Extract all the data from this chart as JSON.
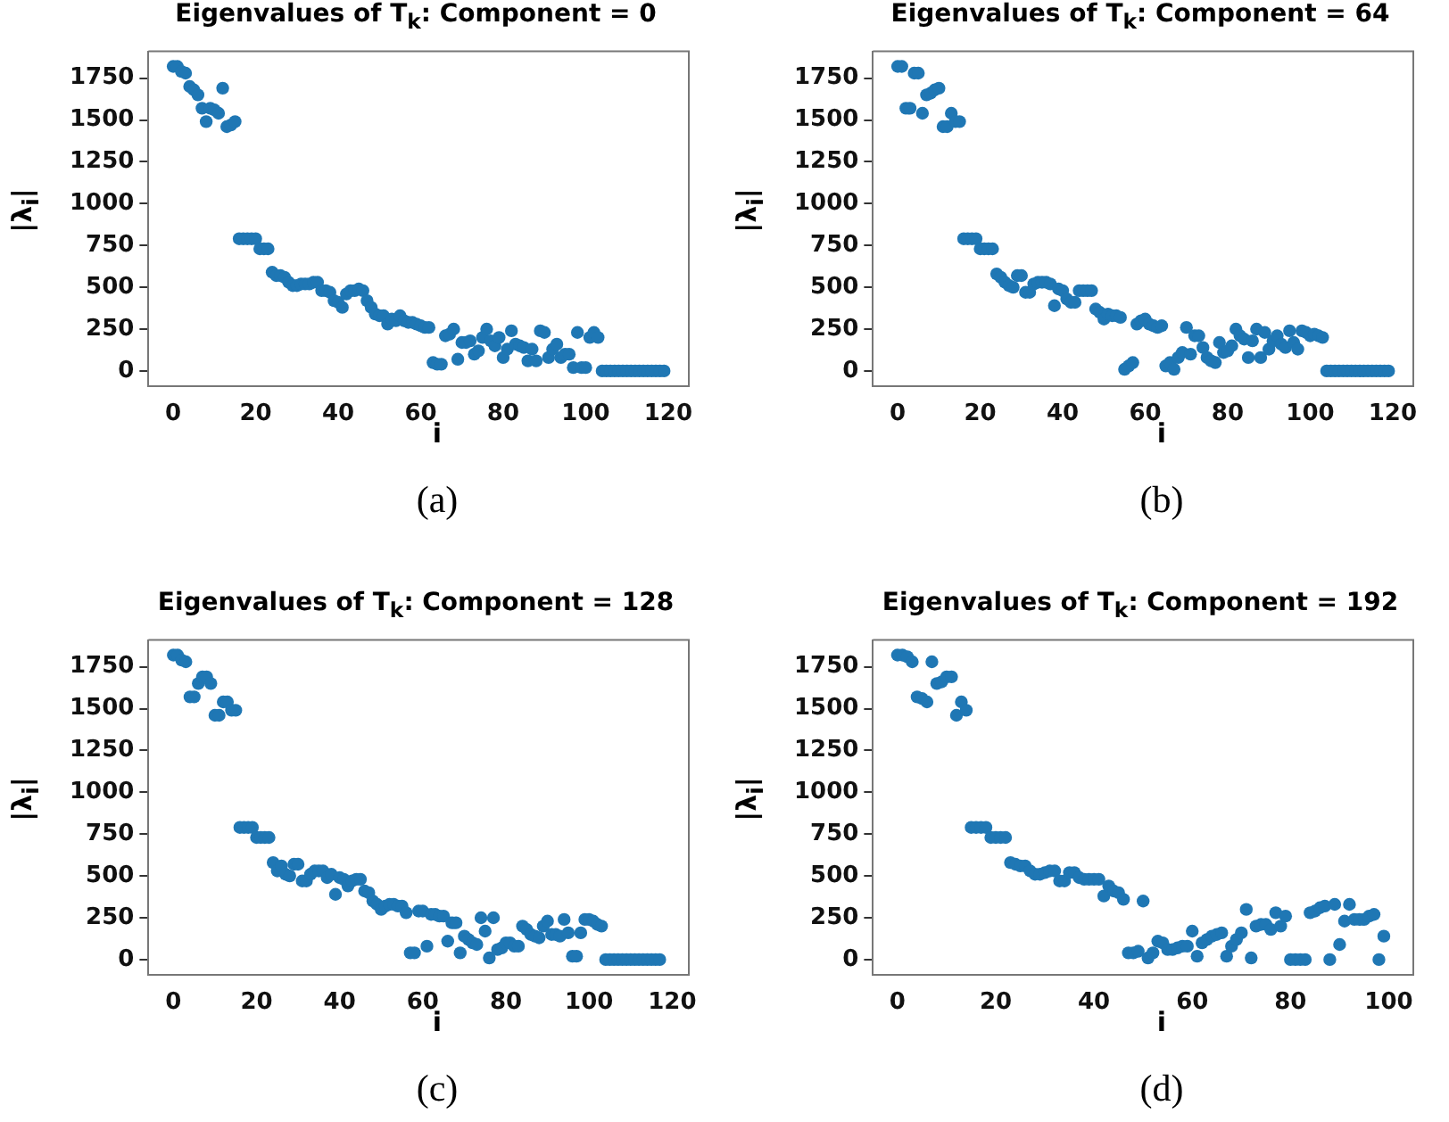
{
  "chart_data": [
    {
      "type": "scatter",
      "title": "Eigenvalues of T$_{k}$: Component = 0",
      "xlabel": "i",
      "ylabel": "|λ$_{i}$|",
      "annotations": [
        "(a)"
      ],
      "marker": "circle",
      "grid": false,
      "xlim": [
        -6,
        125
      ],
      "ylim": [
        -90,
        1910
      ],
      "xticks": [
        0,
        20,
        40,
        60,
        80,
        100,
        120
      ],
      "yticks": [
        0,
        250,
        500,
        750,
        1000,
        1250,
        1500,
        1750
      ],
      "series": [
        {
          "color": "#1f77b4",
          "x": [
            0,
            1,
            2,
            3,
            4,
            5,
            6,
            7,
            8,
            9,
            10,
            11,
            12,
            13,
            14,
            15,
            16,
            17,
            18,
            19,
            20,
            21,
            22,
            23,
            24,
            25,
            26,
            27,
            28,
            29,
            30,
            31,
            32,
            33,
            34,
            35,
            36,
            37,
            38,
            39,
            40,
            41,
            42,
            43,
            44,
            45,
            46,
            47,
            48,
            49,
            50,
            51,
            52,
            53,
            54,
            55,
            56,
            57,
            58,
            59,
            60,
            61,
            62,
            63,
            64,
            65,
            66,
            67,
            68,
            69,
            70,
            71,
            72,
            73,
            74,
            75,
            76,
            77,
            78,
            79,
            80,
            81,
            82,
            83,
            84,
            85,
            86,
            87,
            88,
            89,
            90,
            91,
            92,
            93,
            94,
            95,
            96,
            97,
            98,
            99,
            100,
            101,
            102,
            103,
            104,
            105,
            106,
            107,
            108,
            109,
            110,
            111,
            112,
            113,
            114,
            115,
            116,
            117,
            118,
            119
          ],
          "values": [
            1820,
            1820,
            1790,
            1780,
            1700,
            1680,
            1650,
            1570,
            1490,
            1570,
            1560,
            1540,
            1690,
            1460,
            1470,
            1490,
            790,
            790,
            790,
            790,
            790,
            730,
            730,
            730,
            590,
            570,
            570,
            560,
            530,
            510,
            510,
            520,
            520,
            520,
            530,
            530,
            480,
            480,
            470,
            420,
            410,
            380,
            460,
            480,
            480,
            490,
            480,
            420,
            380,
            340,
            330,
            330,
            280,
            310,
            300,
            330,
            300,
            290,
            290,
            280,
            270,
            260,
            260,
            50,
            40,
            40,
            210,
            220,
            250,
            70,
            170,
            170,
            180,
            100,
            120,
            200,
            250,
            180,
            150,
            200,
            80,
            130,
            240,
            160,
            150,
            140,
            60,
            130,
            60,
            240,
            230,
            80,
            130,
            160,
            80,
            100,
            100,
            20,
            230,
            20,
            20,
            200,
            230,
            200,
            0,
            0,
            0,
            0,
            0,
            0,
            0,
            0,
            0,
            0,
            0,
            0,
            0,
            0,
            0,
            0
          ]
        }
      ]
    },
    {
      "type": "scatter",
      "title": "Eigenvalues of T$_{k}$: Component = 64",
      "xlabel": "i",
      "ylabel": "|λ$_{i}$|",
      "annotations": [
        "(b)"
      ],
      "marker": "circle",
      "grid": false,
      "xlim": [
        -6,
        125
      ],
      "ylim": [
        -90,
        1910
      ],
      "xticks": [
        0,
        20,
        40,
        60,
        80,
        100,
        120
      ],
      "yticks": [
        0,
        250,
        500,
        750,
        1000,
        1250,
        1500,
        1750
      ],
      "series": [
        {
          "color": "#1f77b4",
          "x": [
            0,
            1,
            2,
            3,
            4,
            5,
            6,
            7,
            8,
            9,
            10,
            11,
            12,
            13,
            14,
            15,
            16,
            17,
            18,
            19,
            20,
            21,
            22,
            23,
            24,
            25,
            26,
            27,
            28,
            29,
            30,
            31,
            32,
            33,
            34,
            35,
            36,
            37,
            38,
            39,
            40,
            41,
            42,
            43,
            44,
            45,
            46,
            47,
            48,
            49,
            50,
            51,
            52,
            53,
            54,
            55,
            56,
            57,
            58,
            59,
            60,
            61,
            62,
            63,
            64,
            65,
            66,
            67,
            68,
            69,
            70,
            71,
            72,
            73,
            74,
            75,
            76,
            77,
            78,
            79,
            80,
            81,
            82,
            83,
            84,
            85,
            86,
            87,
            88,
            89,
            90,
            91,
            92,
            93,
            94,
            95,
            96,
            97,
            98,
            99,
            100,
            101,
            102,
            103,
            104,
            105,
            106,
            107,
            108,
            109,
            110,
            111,
            112,
            113,
            114,
            115,
            116,
            117,
            118,
            119
          ],
          "values": [
            1820,
            1820,
            1570,
            1570,
            1780,
            1780,
            1540,
            1650,
            1660,
            1680,
            1690,
            1460,
            1460,
            1540,
            1490,
            1490,
            790,
            790,
            790,
            790,
            730,
            730,
            730,
            730,
            580,
            560,
            530,
            510,
            500,
            570,
            570,
            470,
            470,
            520,
            530,
            530,
            530,
            520,
            390,
            490,
            480,
            430,
            410,
            410,
            480,
            480,
            480,
            480,
            370,
            350,
            310,
            340,
            330,
            330,
            320,
            10,
            30,
            50,
            280,
            300,
            310,
            280,
            270,
            260,
            270,
            30,
            50,
            10,
            80,
            110,
            260,
            100,
            210,
            210,
            140,
            80,
            60,
            50,
            170,
            110,
            120,
            150,
            250,
            210,
            190,
            80,
            180,
            250,
            80,
            230,
            130,
            180,
            210,
            160,
            140,
            240,
            170,
            130,
            240,
            230,
            210,
            220,
            210,
            200,
            0,
            0,
            0,
            0,
            0,
            0,
            0,
            0,
            0,
            0,
            0,
            0,
            0,
            0,
            0,
            0
          ]
        }
      ]
    },
    {
      "type": "scatter",
      "title": "Eigenvalues of T$_{k}$: Component = 128",
      "xlabel": "i",
      "ylabel": "|λ$_{i}$|",
      "annotations": [
        "(c)"
      ],
      "marker": "circle",
      "grid": false,
      "xlim": [
        -6,
        124
      ],
      "ylim": [
        -90,
        1910
      ],
      "xticks": [
        0,
        20,
        40,
        60,
        80,
        100,
        120
      ],
      "yticks": [
        0,
        250,
        500,
        750,
        1000,
        1250,
        1500,
        1750
      ],
      "series": [
        {
          "color": "#1f77b4",
          "x": [
            0,
            1,
            2,
            3,
            4,
            5,
            6,
            7,
            8,
            9,
            10,
            11,
            12,
            13,
            14,
            15,
            16,
            17,
            18,
            19,
            20,
            21,
            22,
            23,
            24,
            25,
            26,
            27,
            28,
            29,
            30,
            31,
            32,
            33,
            34,
            35,
            36,
            37,
            38,
            39,
            40,
            41,
            42,
            43,
            44,
            45,
            46,
            47,
            48,
            49,
            50,
            51,
            52,
            53,
            54,
            55,
            56,
            57,
            58,
            59,
            60,
            61,
            62,
            63,
            64,
            65,
            66,
            67,
            68,
            69,
            70,
            71,
            72,
            73,
            74,
            75,
            76,
            77,
            78,
            79,
            80,
            81,
            82,
            83,
            84,
            85,
            86,
            87,
            88,
            89,
            90,
            91,
            92,
            93,
            94,
            95,
            96,
            97,
            98,
            99,
            100,
            101,
            102,
            103,
            104,
            105,
            106,
            107,
            108,
            109,
            110,
            111,
            112,
            113,
            114,
            115,
            116,
            117
          ],
          "values": [
            1820,
            1820,
            1790,
            1780,
            1570,
            1570,
            1650,
            1690,
            1690,
            1650,
            1460,
            1460,
            1540,
            1540,
            1490,
            1490,
            790,
            790,
            790,
            790,
            730,
            730,
            730,
            730,
            580,
            530,
            560,
            510,
            500,
            570,
            570,
            470,
            470,
            510,
            530,
            530,
            530,
            490,
            510,
            390,
            490,
            480,
            440,
            470,
            480,
            480,
            410,
            400,
            350,
            330,
            300,
            320,
            330,
            330,
            320,
            320,
            280,
            40,
            40,
            290,
            290,
            80,
            270,
            270,
            260,
            260,
            110,
            220,
            220,
            40,
            140,
            120,
            100,
            90,
            250,
            170,
            10,
            250,
            60,
            70,
            100,
            100,
            80,
            80,
            200,
            180,
            150,
            140,
            130,
            200,
            230,
            150,
            150,
            140,
            240,
            160,
            20,
            20,
            160,
            240,
            240,
            230,
            210,
            200,
            0,
            0,
            0,
            0,
            0,
            0,
            0,
            0,
            0,
            0,
            0,
            0,
            0,
            0
          ]
        }
      ]
    },
    {
      "type": "scatter",
      "title": "Eigenvalues of T$_{k}$: Component = 192",
      "xlabel": "i",
      "ylabel": "|λ$_{i}$|",
      "annotations": [
        "(d)"
      ],
      "marker": "circle",
      "grid": false,
      "xlim": [
        -5,
        105
      ],
      "ylim": [
        -90,
        1910
      ],
      "xticks": [
        0,
        20,
        40,
        60,
        80,
        100
      ],
      "yticks": [
        0,
        250,
        500,
        750,
        1000,
        1250,
        1500,
        1750
      ],
      "series": [
        {
          "color": "#1f77b4",
          "x": [
            0,
            1,
            2,
            3,
            4,
            5,
            6,
            7,
            8,
            9,
            10,
            11,
            12,
            13,
            14,
            15,
            16,
            17,
            18,
            19,
            20,
            21,
            22,
            23,
            24,
            25,
            26,
            27,
            28,
            29,
            30,
            31,
            32,
            33,
            34,
            35,
            36,
            37,
            38,
            39,
            40,
            41,
            42,
            43,
            44,
            45,
            46,
            47,
            48,
            49,
            50,
            51,
            52,
            53,
            54,
            55,
            56,
            57,
            58,
            59,
            60,
            61,
            62,
            63,
            64,
            65,
            66,
            67,
            68,
            69,
            70,
            71,
            72,
            73,
            74,
            75,
            76,
            77,
            78,
            79,
            80,
            81,
            82,
            83,
            84,
            85,
            86,
            87,
            88,
            89,
            90,
            91,
            92,
            93,
            94,
            95,
            96,
            97,
            98,
            99
          ],
          "values": [
            1820,
            1820,
            1810,
            1780,
            1570,
            1560,
            1540,
            1780,
            1650,
            1660,
            1690,
            1690,
            1460,
            1540,
            1490,
            790,
            790,
            790,
            790,
            730,
            730,
            730,
            730,
            580,
            570,
            560,
            560,
            530,
            510,
            510,
            520,
            530,
            530,
            470,
            470,
            520,
            520,
            490,
            480,
            480,
            480,
            480,
            380,
            440,
            410,
            400,
            360,
            40,
            40,
            50,
            350,
            10,
            40,
            110,
            100,
            60,
            60,
            70,
            80,
            80,
            170,
            20,
            100,
            120,
            140,
            150,
            160,
            20,
            80,
            120,
            160,
            300,
            10,
            200,
            210,
            210,
            180,
            280,
            200,
            260,
            0,
            0,
            0,
            0,
            280,
            290,
            310,
            320,
            0,
            330,
            90,
            230,
            330,
            240,
            240,
            240,
            260,
            270,
            0,
            140
          ]
        }
      ]
    }
  ]
}
